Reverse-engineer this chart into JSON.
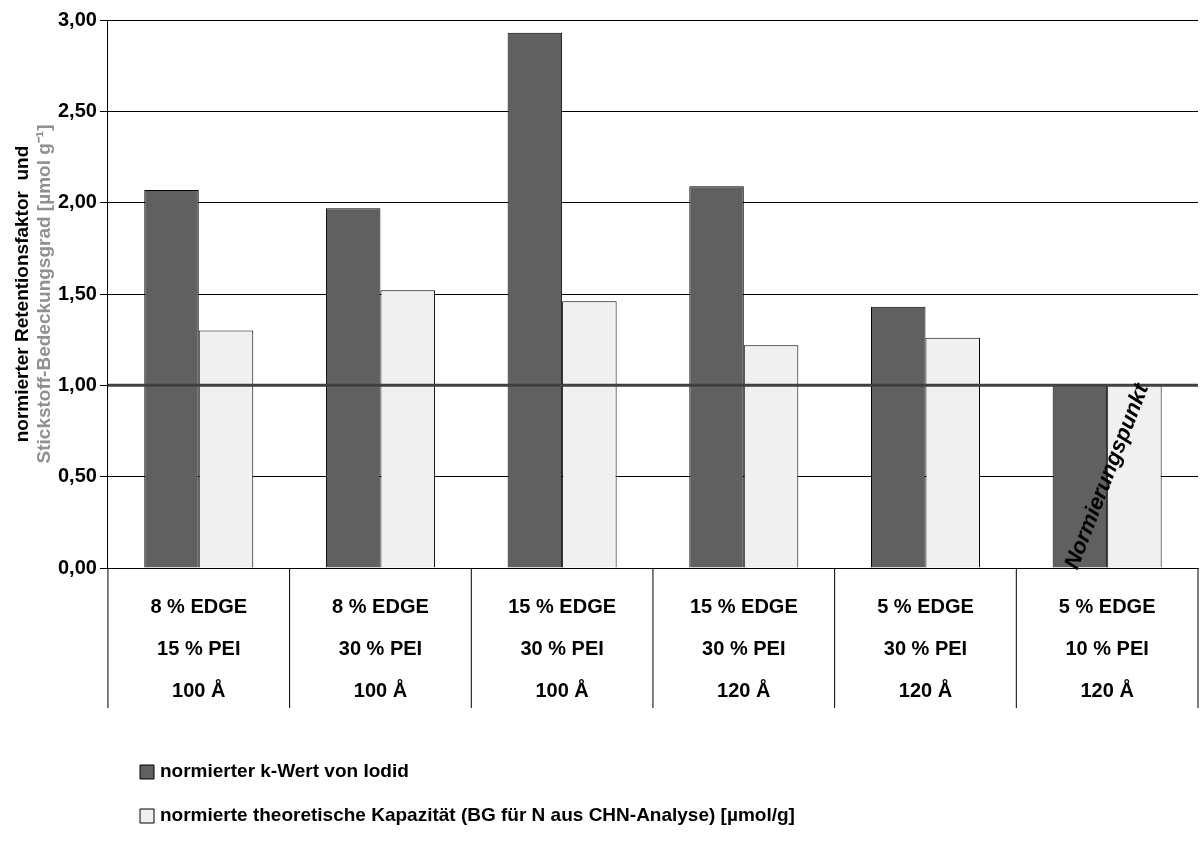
{
  "chart_data": {
    "type": "bar",
    "ylabel": "normierter Retentionsfaktor  und\nStickstoff-Bedeckungsgrad [µmol g⁻¹]",
    "categories": [
      "8 % EDGE\n15 % PEI\n100 Å",
      "8 % EDGE\n30 % PEI\n100 Å",
      "15 % EDGE\n30 % PEI\n100 Å",
      "15 % EDGE\n30 % PEI\n120 Å",
      "5 % EDGE\n30 % PEI\n120 Å",
      "5 % EDGE\n10 % PEI\n120 Å"
    ],
    "series": [
      {
        "name": "normierter k-Wert von Iodid",
        "color": "#606060",
        "values": [
          2.07,
          1.97,
          2.93,
          2.09,
          1.43,
          1.0
        ]
      },
      {
        "name": "normierte theoretische Kapazität (BG für N aus CHN-Analyse) [µmol/g]",
        "color": "#f0f0f0",
        "values": [
          1.3,
          1.52,
          1.46,
          1.22,
          1.26,
          1.0
        ]
      }
    ],
    "ylim": [
      0,
      3
    ],
    "yticks": [
      {
        "value": 0,
        "label": "0,00"
      },
      {
        "value": 0.5,
        "label": "0,50"
      },
      {
        "value": 1,
        "label": "1,00"
      },
      {
        "value": 1.5,
        "label": "1,50"
      },
      {
        "value": 2,
        "label": "2,00"
      },
      {
        "value": 2.5,
        "label": "2,50"
      },
      {
        "value": 3,
        "label": "3,00"
      }
    ],
    "grid": "y",
    "legend": "bottom left",
    "ref_lines": [
      {
        "axis": "y",
        "value": 1,
        "color": "#404040"
      }
    ],
    "annotations": [
      {
        "text": "Normierungspunkt",
        "x": "5 % EDGE\n10 % PEI\n120 Å",
        "y": 0.5
      }
    ]
  }
}
